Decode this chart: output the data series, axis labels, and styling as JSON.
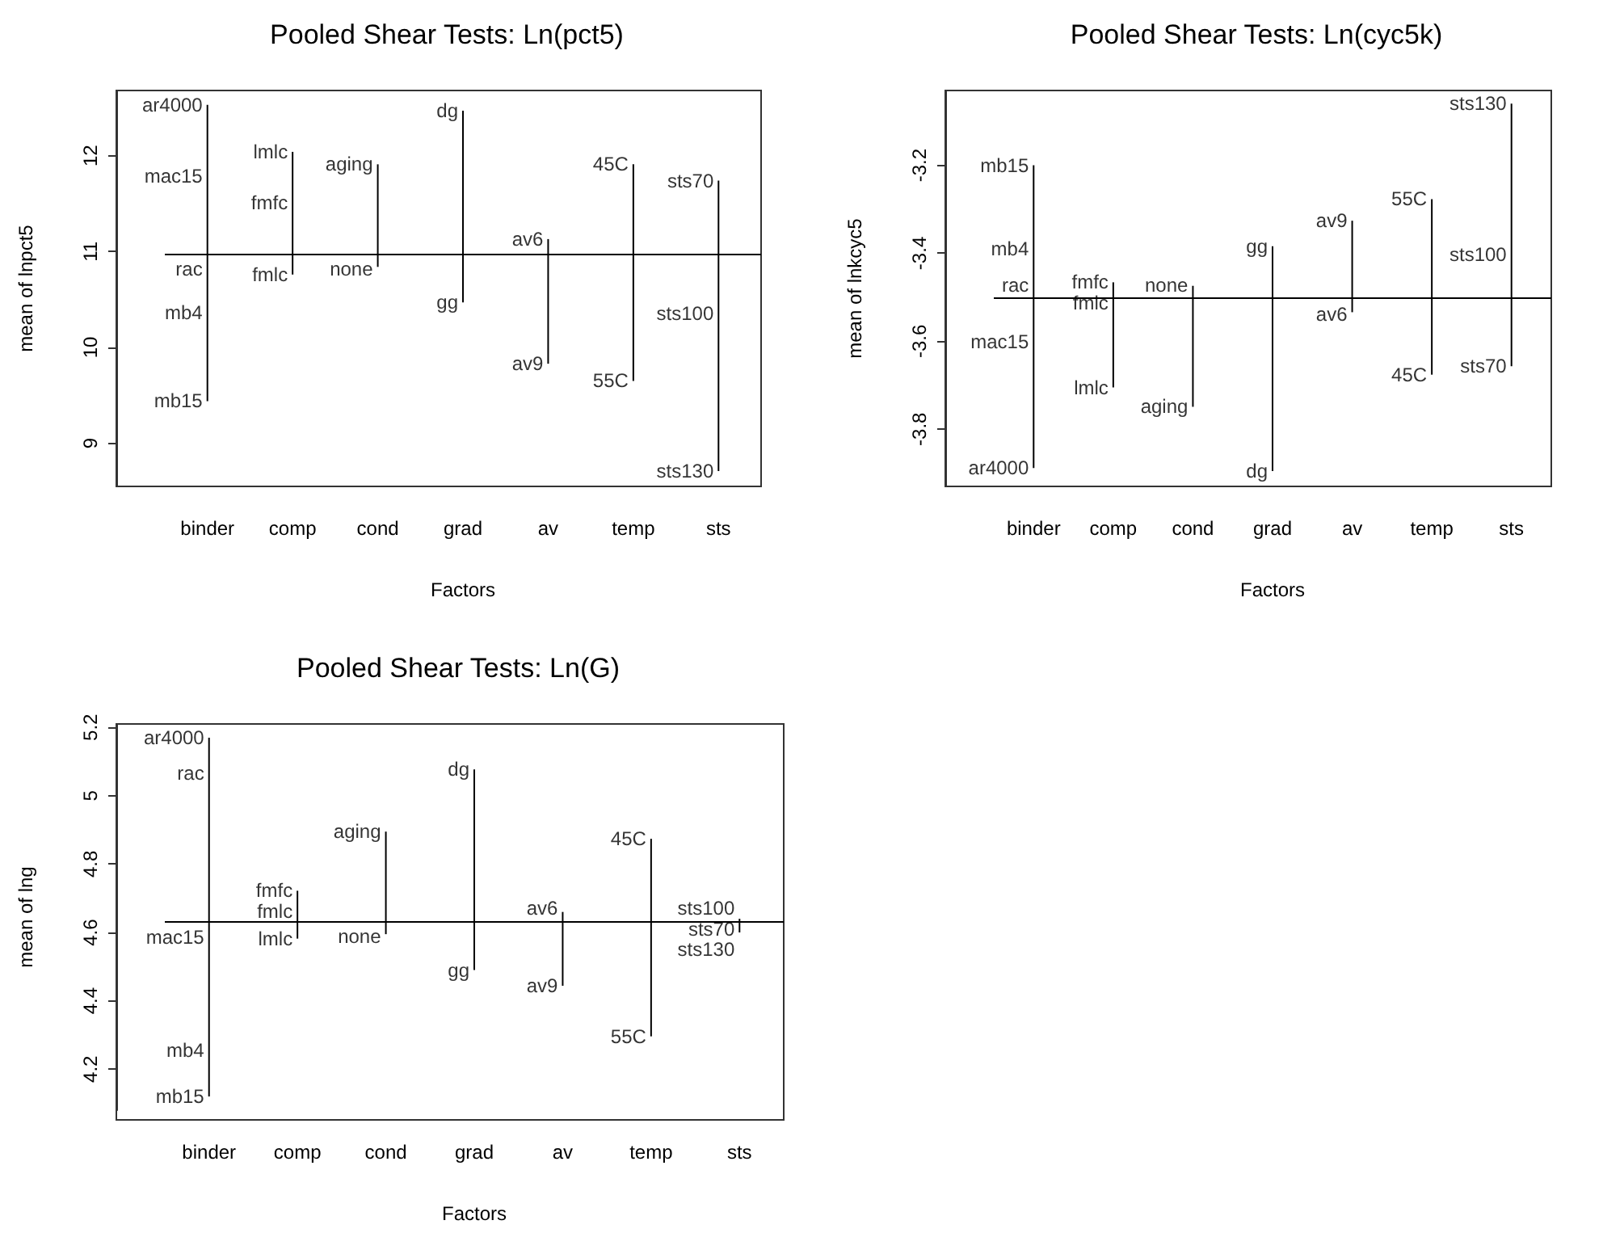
{
  "chart_data": [
    {
      "type": "line",
      "marker": "none",
      "title": "Pooled Shear Tests: Ln(pct5)",
      "xlabel": "Factors",
      "ylabel": "mean of lnpct5",
      "categories": [
        "binder",
        "comp",
        "cond",
        "grad",
        "av",
        "temp",
        "sts"
      ],
      "ylim": [
        8.55,
        12.68
      ],
      "yticks": [
        9,
        10,
        11,
        12
      ],
      "ref_lines": [
        {
          "axis": "y",
          "value": 10.97
        }
      ],
      "series": [
        {
          "color": "#000000",
          "x": [
            "binder",
            "binder",
            "binder",
            "binder",
            "binder"
          ],
          "values": [
            12.53,
            11.79,
            10.86,
            10.36,
            9.44
          ]
        },
        {
          "color": "#000000",
          "x": [
            "comp",
            "comp",
            "comp"
          ],
          "values": [
            12.04,
            11.51,
            10.76
          ]
        },
        {
          "color": "#000000",
          "x": [
            "cond",
            "cond"
          ],
          "values": [
            11.91,
            10.84
          ]
        },
        {
          "color": "#000000",
          "x": [
            "grad",
            "grad"
          ],
          "values": [
            12.47,
            10.47
          ]
        },
        {
          "color": "#000000",
          "x": [
            "av",
            "av"
          ],
          "values": [
            11.13,
            9.83
          ]
        },
        {
          "color": "#000000",
          "x": [
            "temp",
            "temp"
          ],
          "values": [
            11.91,
            9.65
          ]
        },
        {
          "color": "#000000",
          "x": [
            "sts",
            "sts",
            "sts"
          ],
          "values": [
            11.74,
            10.35,
            8.71
          ]
        }
      ],
      "annotations": [
        {
          "text": "ar4000",
          "x": "binder",
          "y": 12.53
        },
        {
          "text": "mac15",
          "x": "binder",
          "y": 11.79
        },
        {
          "text": "rac",
          "x": "binder",
          "y": 10.86
        },
        {
          "text": "mb4",
          "x": "binder",
          "y": 10.36
        },
        {
          "text": "mb15",
          "x": "binder",
          "y": 9.44
        },
        {
          "text": "lmlc",
          "x": "comp",
          "y": 12.04
        },
        {
          "text": "fmfc",
          "x": "comp",
          "y": 11.51
        },
        {
          "text": "fmlc",
          "x": "comp",
          "y": 10.76
        },
        {
          "text": "aging",
          "x": "cond",
          "y": 11.91
        },
        {
          "text": "none",
          "x": "cond",
          "y": 10.84
        },
        {
          "text": "dg",
          "x": "grad",
          "y": 12.47
        },
        {
          "text": "gg",
          "x": "grad",
          "y": 10.47
        },
        {
          "text": "av6",
          "x": "av",
          "y": 11.13
        },
        {
          "text": "av9",
          "x": "av",
          "y": 9.83
        },
        {
          "text": "45C",
          "x": "temp",
          "y": 11.91
        },
        {
          "text": "55C",
          "x": "temp",
          "y": 9.65
        },
        {
          "text": "sts70",
          "x": "sts",
          "y": 11.74
        },
        {
          "text": "sts100",
          "x": "sts",
          "y": 10.35
        },
        {
          "text": "sts130",
          "x": "sts",
          "y": 8.71
        }
      ]
    },
    {
      "type": "line",
      "marker": "none",
      "title": "Pooled Shear Tests: Ln(cyc5k)",
      "xlabel": "Factors",
      "ylabel": "mean of lnkcyc5",
      "categories": [
        "binder",
        "comp",
        "cond",
        "grad",
        "av",
        "temp",
        "sts"
      ],
      "ylim": [
        -3.93,
        -3.03
      ],
      "yticks": [
        -3.8,
        -3.6,
        -3.4,
        -3.2
      ],
      "ref_lines": [
        {
          "axis": "y",
          "value": -3.505
        }
      ],
      "series": [
        {
          "color": "#000000",
          "x": [
            "binder",
            "binder",
            "binder",
            "binder",
            "binder"
          ],
          "values": [
            -3.2,
            -3.39,
            -3.477,
            -3.602,
            -3.888
          ]
        },
        {
          "color": "#000000",
          "x": [
            "comp",
            "comp",
            "comp"
          ],
          "values": [
            -3.466,
            -3.472,
            -3.705
          ]
        },
        {
          "color": "#000000",
          "x": [
            "cond",
            "cond"
          ],
          "values": [
            -3.474,
            -3.749
          ]
        },
        {
          "color": "#000000",
          "x": [
            "grad",
            "grad"
          ],
          "values": [
            -3.384,
            -3.895
          ]
        },
        {
          "color": "#000000",
          "x": [
            "av",
            "av"
          ],
          "values": [
            -3.326,
            -3.534
          ]
        },
        {
          "color": "#000000",
          "x": [
            "temp",
            "temp"
          ],
          "values": [
            -3.277,
            -3.676
          ]
        },
        {
          "color": "#000000",
          "x": [
            "sts",
            "sts",
            "sts"
          ],
          "values": [
            -3.06,
            -3.402,
            -3.657
          ]
        }
      ],
      "annotations": [
        {
          "text": "mb15",
          "x": "binder",
          "y": -3.2
        },
        {
          "text": "mb4",
          "x": "binder",
          "y": -3.39
        },
        {
          "text": "rac",
          "x": "binder",
          "y": -3.477
        },
        {
          "text": "mac15",
          "x": "binder",
          "y": -3.602
        },
        {
          "text": "ar4000",
          "x": "binder",
          "y": -3.888
        },
        {
          "text": "fmfc",
          "x": "comp",
          "y": -3.466
        },
        {
          "text": "fmlc",
          "x": "comp",
          "y": -3.472
        },
        {
          "text": "lmlc",
          "x": "comp",
          "y": -3.705
        },
        {
          "text": "none",
          "x": "cond",
          "y": -3.474
        },
        {
          "text": "aging",
          "x": "cond",
          "y": -3.749
        },
        {
          "text": "gg",
          "x": "grad",
          "y": -3.384
        },
        {
          "text": "dg",
          "x": "grad",
          "y": -3.895
        },
        {
          "text": "av9",
          "x": "av",
          "y": -3.326
        },
        {
          "text": "av6",
          "x": "av",
          "y": -3.534
        },
        {
          "text": "55C",
          "x": "temp",
          "y": -3.277
        },
        {
          "text": "45C",
          "x": "temp",
          "y": -3.676
        },
        {
          "text": "sts130",
          "x": "sts",
          "y": -3.06
        },
        {
          "text": "sts100",
          "x": "sts",
          "y": -3.402
        },
        {
          "text": "sts70",
          "x": "sts",
          "y": -3.657
        }
      ]
    },
    {
      "type": "line",
      "marker": "none",
      "title": "Pooled Shear Tests: Ln(G)",
      "xlabel": "Factors",
      "ylabel": "mean of lng",
      "categories": [
        "binder",
        "comp",
        "cond",
        "grad",
        "av",
        "temp",
        "sts"
      ],
      "ylim": [
        4.08,
        5.21
      ],
      "yticks": [
        4.2,
        4.4,
        4.6,
        4.8,
        5.0,
        5.2
      ],
      "ref_lines": [
        {
          "axis": "y",
          "value": 4.629
        }
      ],
      "series": [
        {
          "color": "#000000",
          "x": [
            "binder",
            "binder",
            "binder",
            "binder",
            "binder"
          ],
          "values": [
            5.17,
            5.065,
            4.585,
            4.254,
            4.12
          ]
        },
        {
          "color": "#000000",
          "x": [
            "comp",
            "comp",
            "comp"
          ],
          "values": [
            4.722,
            4.636,
            4.582
          ]
        },
        {
          "color": "#000000",
          "x": [
            "cond",
            "cond"
          ],
          "values": [
            4.895,
            4.595
          ]
        },
        {
          "color": "#000000",
          "x": [
            "grad",
            "grad"
          ],
          "values": [
            5.077,
            4.49
          ]
        },
        {
          "color": "#000000",
          "x": [
            "av",
            "av"
          ],
          "values": [
            4.66,
            4.444
          ]
        },
        {
          "color": "#000000",
          "x": [
            "temp",
            "temp"
          ],
          "values": [
            4.874,
            4.296
          ]
        },
        {
          "color": "#000000",
          "x": [
            "sts",
            "sts",
            "sts"
          ],
          "values": [
            4.64,
            4.637,
            4.6
          ]
        }
      ],
      "annotations": [
        {
          "text": "ar4000",
          "x": "binder",
          "y": 5.17
        },
        {
          "text": "rac",
          "x": "binder",
          "y": 5.065
        },
        {
          "text": "mac15",
          "x": "binder",
          "y": 4.585
        },
        {
          "text": "mb4",
          "x": "binder",
          "y": 4.254
        },
        {
          "text": "mb15",
          "x": "binder",
          "y": 4.12
        },
        {
          "text": "fmfc",
          "x": "comp",
          "y": 4.722
        },
        {
          "text": "fmlc",
          "x": "comp",
          "y": 4.636
        },
        {
          "text": "lmlc",
          "x": "comp",
          "y": 4.582
        },
        {
          "text": "aging",
          "x": "cond",
          "y": 4.895
        },
        {
          "text": "none",
          "x": "cond",
          "y": 4.595
        },
        {
          "text": "dg",
          "x": "grad",
          "y": 5.077
        },
        {
          "text": "gg",
          "x": "grad",
          "y": 4.49
        },
        {
          "text": "av6",
          "x": "av",
          "y": 4.66
        },
        {
          "text": "av9",
          "x": "av",
          "y": 4.444
        },
        {
          "text": "45C",
          "x": "temp",
          "y": 4.874
        },
        {
          "text": "55C",
          "x": "temp",
          "y": 4.296
        },
        {
          "text": "sts100",
          "x": "sts",
          "y": 4.64
        },
        {
          "text": "sts70",
          "x": "sts",
          "y": 4.637
        },
        {
          "text": "sts130",
          "x": "sts",
          "y": 4.6
        }
      ]
    }
  ]
}
